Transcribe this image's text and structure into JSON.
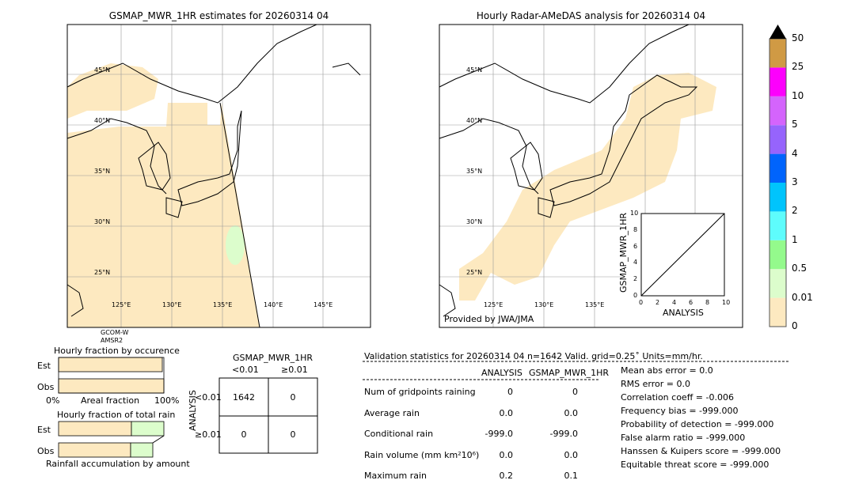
{
  "left_map": {
    "title": "GSMAP_MWR_1HR estimates for 20260314 04",
    "sensor_line1": "GCOM-W",
    "sensor_line2": "AMSR2",
    "lat_labels": [
      "45°N",
      "40°N",
      "35°N",
      "30°N",
      "25°N"
    ],
    "lon_labels": [
      "125°E",
      "130°E",
      "135°E",
      "140°E",
      "145°E"
    ]
  },
  "right_map": {
    "title": "Hourly Radar-AMeDAS analysis for 20260314 04",
    "credit": "Provided by JWA/JMA",
    "lat_labels": [
      "45°N",
      "40°N",
      "35°N",
      "30°N",
      "25°N"
    ],
    "lon_labels": [
      "125°E",
      "130°E",
      "135°E"
    ]
  },
  "inset": {
    "xlabel": "ANALYSIS",
    "ylabel": "GSMAP_MWR_1HR",
    "ticks": [
      "0",
      "2",
      "4",
      "6",
      "8",
      "10"
    ]
  },
  "colorbar": {
    "levels": [
      "0",
      "0.01",
      "0.5",
      "1",
      "2",
      "3",
      "4",
      "5",
      "10",
      "25",
      "50"
    ],
    "colors": [
      "#fde9c0",
      "#dcfdcc",
      "#94fa8c",
      "#5efcfc",
      "#00c4fc",
      "#0064fc",
      "#9664fc",
      "#d464fc",
      "#fc00fc",
      "#d09a44"
    ],
    "extend_color": "#000000"
  },
  "occurrence": {
    "title": "Hourly fraction by occurence",
    "rows": [
      "Est",
      "Obs"
    ],
    "xlabel": "Areal fraction",
    "xmin": "0%",
    "xmax": "100%",
    "est_fraction": 0.99,
    "obs_fraction": 1.0
  },
  "total_rain": {
    "title": "Hourly fraction of total rain",
    "rows": [
      "Est",
      "Obs"
    ],
    "xlabel": "Rainfall accumulation by amount",
    "est_split": 0.69,
    "est_total": 1.0,
    "obs_split": 0.68,
    "obs_total": 0.89
  },
  "contingency": {
    "title": "GSMAP_MWR_1HR",
    "col_labels": [
      "<0.01",
      "≥0.01"
    ],
    "row_axis": "ANALYSIS",
    "row_labels": [
      "<0.01",
      "≥0.01"
    ],
    "cells": [
      [
        "1642",
        "0"
      ],
      [
        "0",
        "0"
      ]
    ]
  },
  "stats": {
    "header": "Validation statistics for 20260314 04  n=1642 Valid. grid=0.25˚ Units=mm/hr.",
    "columns": [
      "ANALYSIS",
      "GSMAP_MWR_1HR"
    ],
    "rows": [
      {
        "label": "Num of gridpoints raining",
        "a": "0",
        "g": "0"
      },
      {
        "label": "Average rain",
        "a": "0.0",
        "g": "0.0"
      },
      {
        "label": "Conditional rain",
        "a": "-999.0",
        "g": "-999.0"
      },
      {
        "label": "Rain volume (mm km²10⁶)",
        "a": "0.0",
        "g": "0.0"
      },
      {
        "label": "Maximum rain",
        "a": "0.2",
        "g": "0.1"
      }
    ],
    "scores": [
      "Mean abs error =    0.0",
      "RMS error =    0.0",
      "Correlation coeff = -0.006",
      "Frequency bias = -999.000",
      "Probability of detection = -999.000",
      "False alarm ratio = -999.000",
      "Hanssen & Kuipers score = -999.000",
      "Equitable threat score = -999.000"
    ]
  }
}
